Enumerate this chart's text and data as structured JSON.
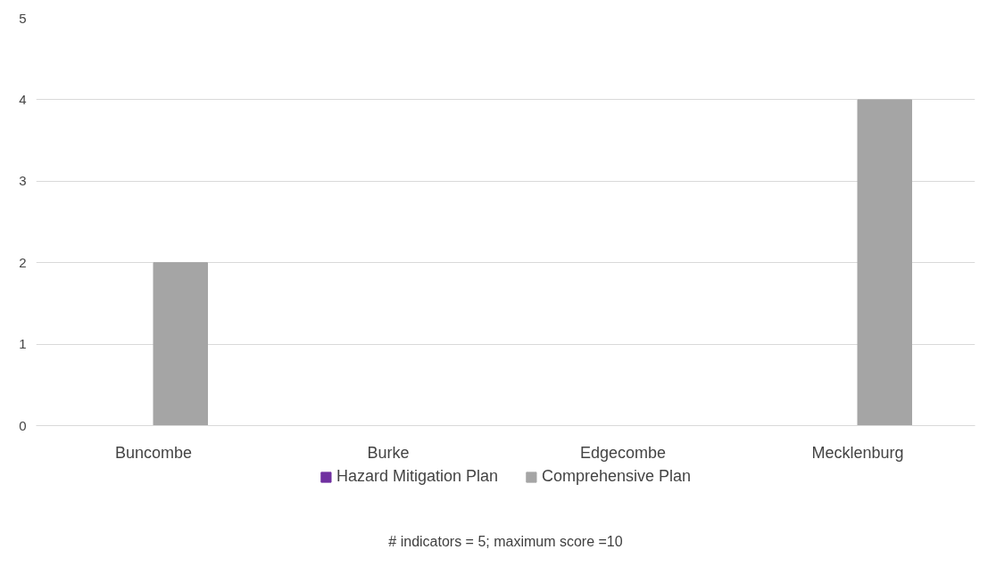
{
  "chart_data": {
    "type": "bar",
    "categories": [
      "Buncombe",
      "Burke",
      "Edgecombe",
      "Mecklenburg"
    ],
    "series": [
      {
        "name": "Hazard Mitigation Plan",
        "color": "#7030a0",
        "values": [
          0,
          0,
          0,
          0
        ]
      },
      {
        "name": "Comprehensive Plan",
        "color": "#a5a5a5",
        "values": [
          2,
          0,
          0,
          4
        ]
      }
    ],
    "ylim": [
      0,
      5
    ],
    "yticks": [
      0,
      1,
      2,
      3,
      4,
      5
    ],
    "grid": "y",
    "legend": "bottom",
    "annotations": [
      "# indicators = 5; maximum score =10"
    ]
  }
}
